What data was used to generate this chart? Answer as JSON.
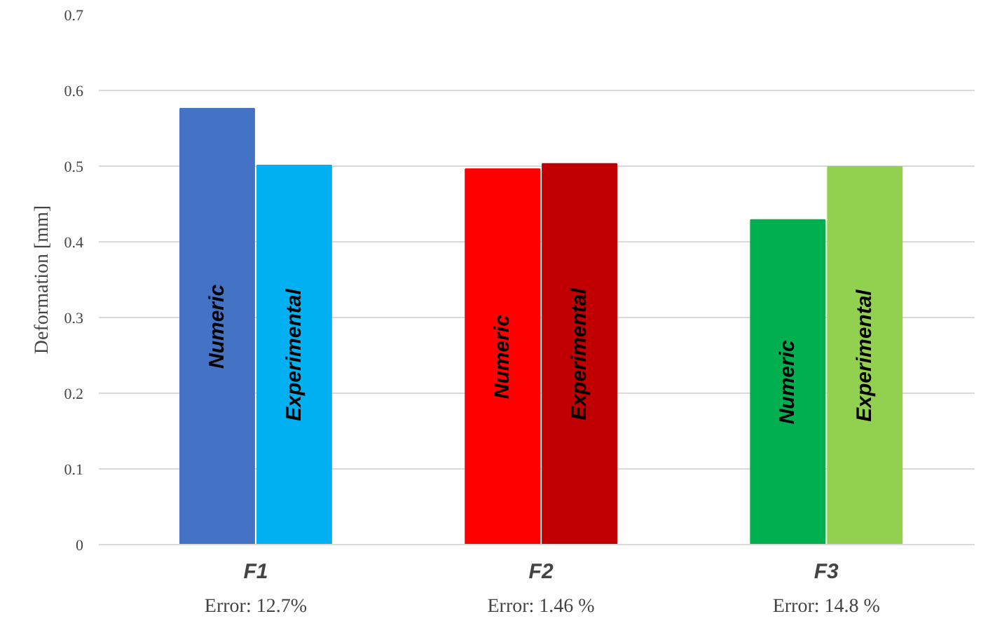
{
  "chart_data": {
    "type": "bar",
    "ylabel": "Deformation [mm]",
    "categories": [
      "F1",
      "F2",
      "F3"
    ],
    "series": [
      {
        "name": "Numeric",
        "colors": [
          "#4472c4",
          "#ff0000",
          "#00b050"
        ],
        "values": [
          0.576,
          0.496,
          0.429
        ]
      },
      {
        "name": "Experimental",
        "colors": [
          "#00b0f0",
          "#c00000",
          "#92d050"
        ],
        "values": [
          0.501,
          0.503,
          0.499
        ]
      }
    ],
    "ylim": [
      0,
      0.7
    ],
    "yticks": [
      0,
      0.1,
      0.2,
      0.3,
      0.4,
      0.5,
      0.6,
      0.7
    ],
    "grid": "y",
    "legend": false,
    "annotations": [
      "Error: 12.7%",
      "Error: 1.46 %",
      "Error: 14.8 %"
    ]
  }
}
